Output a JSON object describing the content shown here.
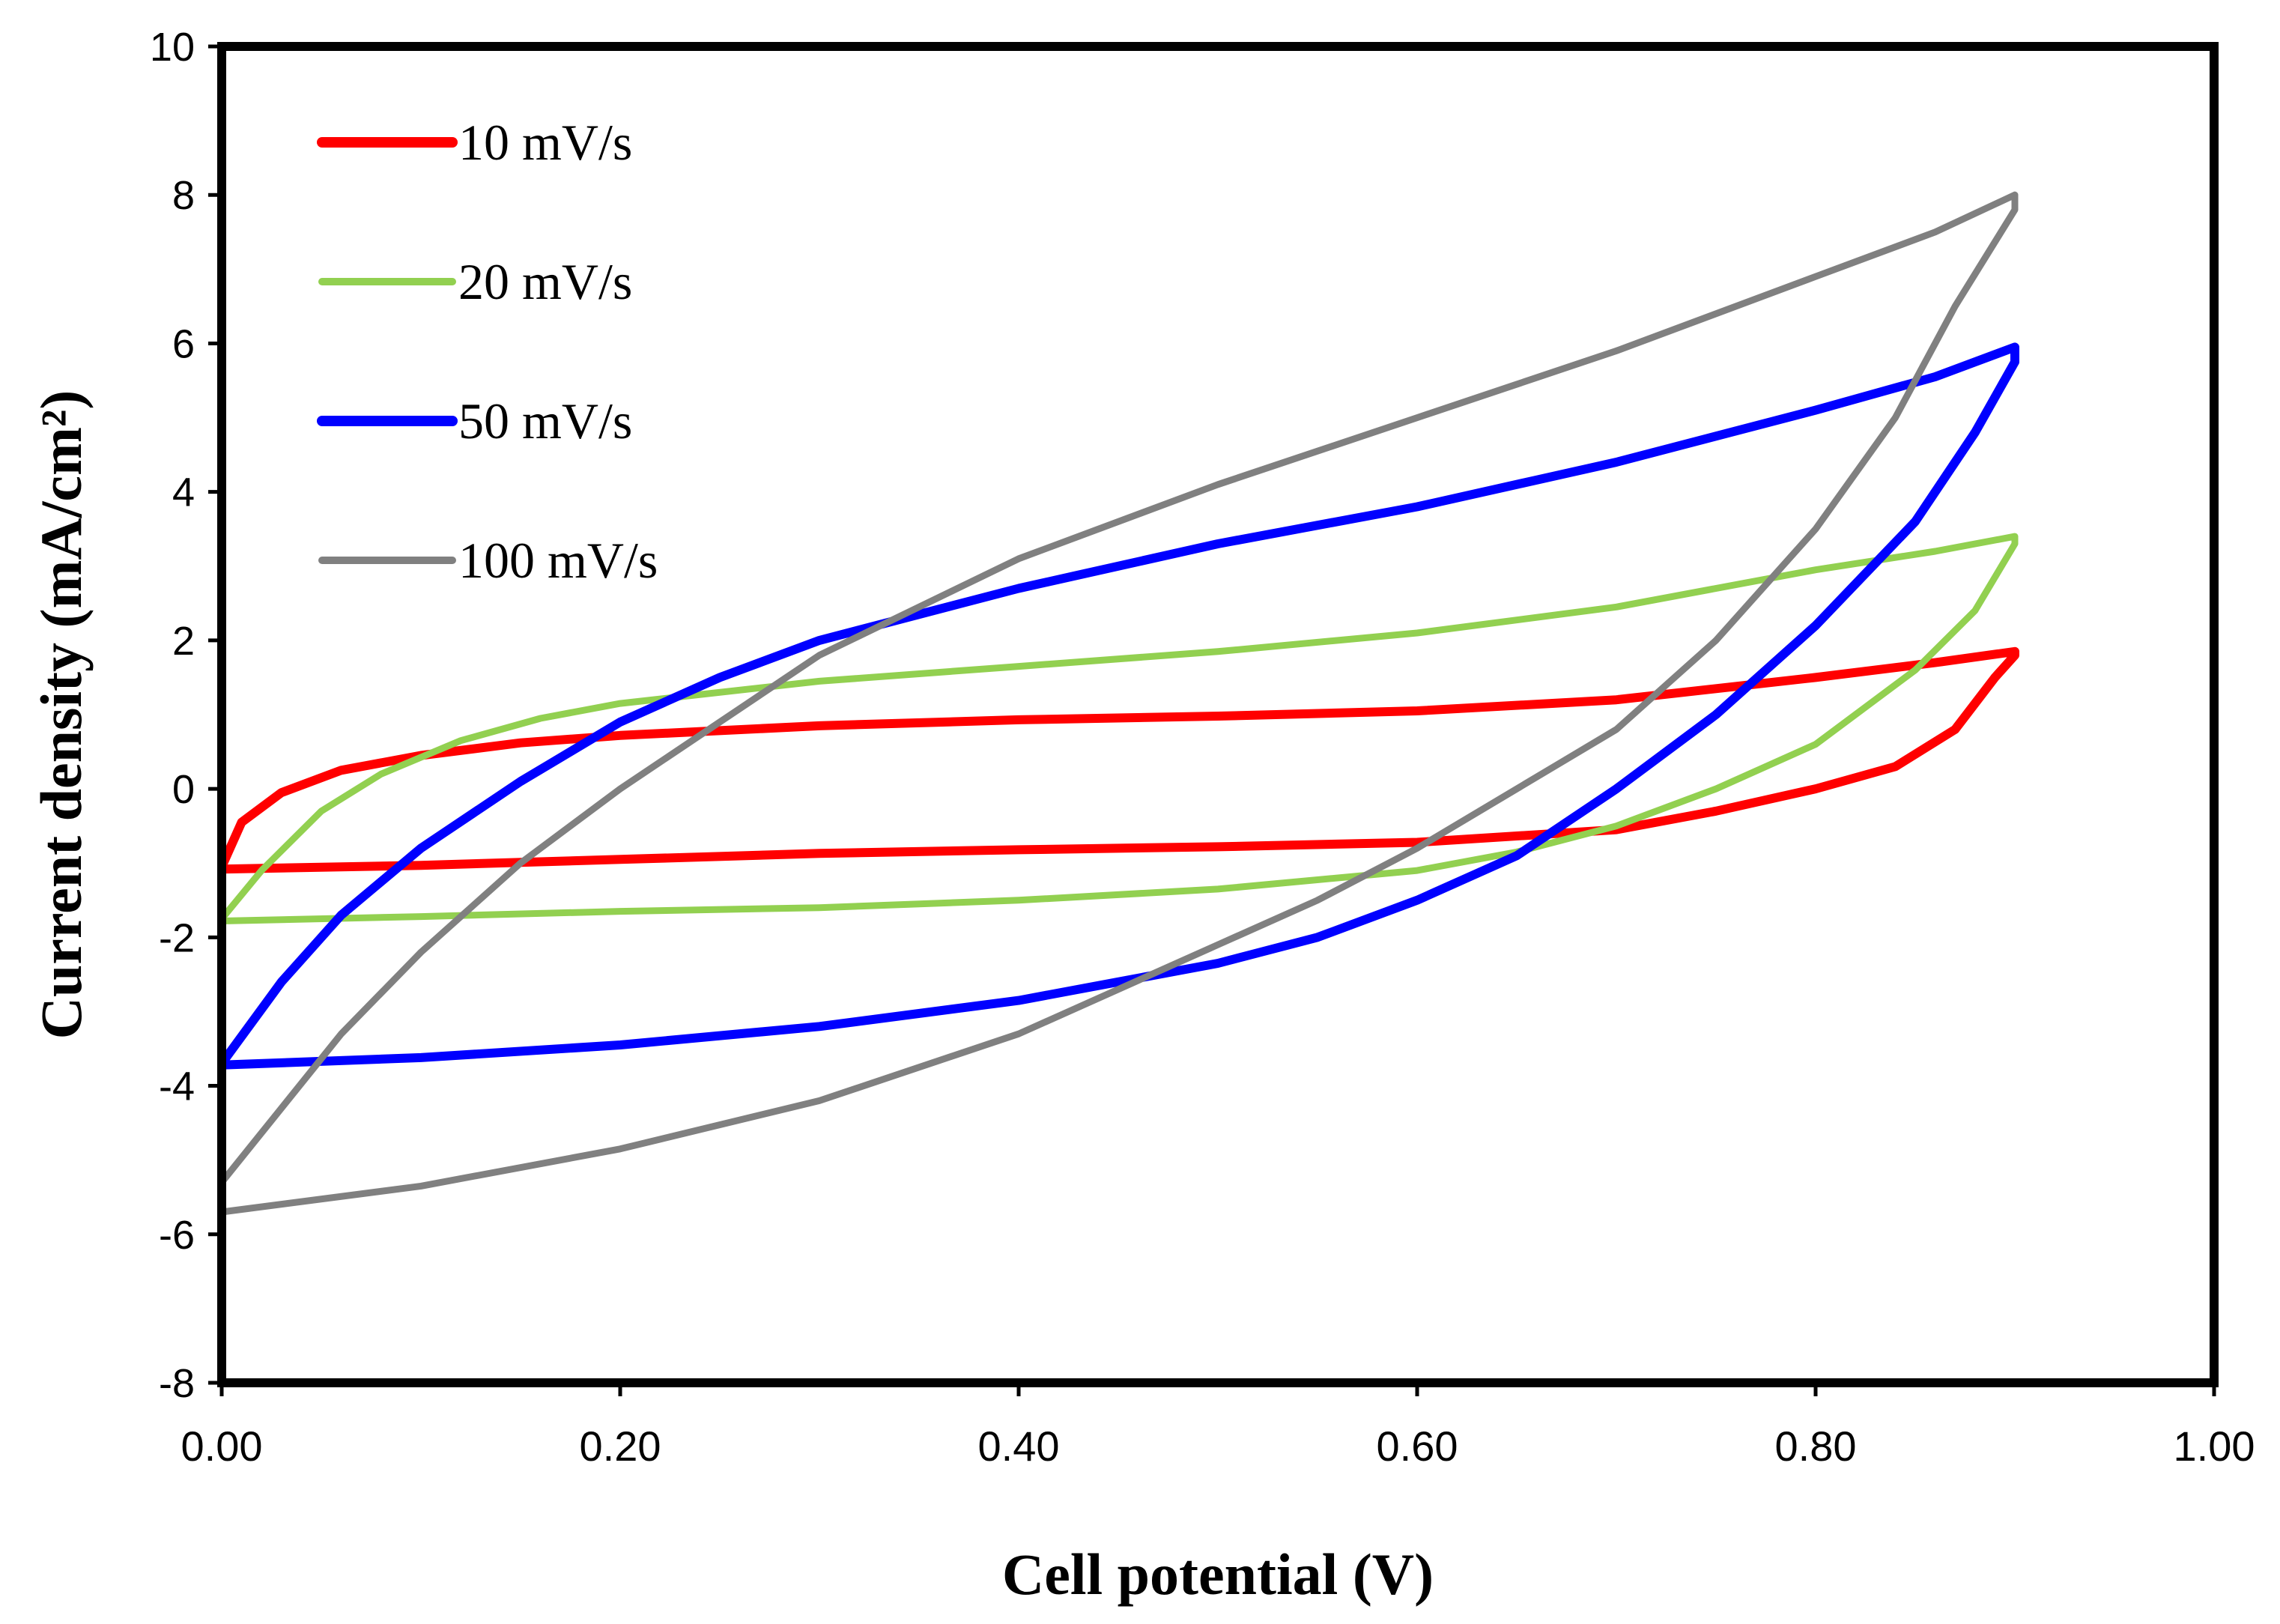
{
  "chart_data": {
    "type": "line",
    "title": "",
    "xlabel": "Cell potential (V)",
    "ylabel": "Current density (mA/cm²)",
    "xlim": [
      0,
      1
    ],
    "ylim": [
      -8,
      10
    ],
    "xticks": [
      0,
      0.2,
      0.4,
      0.6,
      0.8,
      1.0
    ],
    "xtick_labels": [
      "0.00",
      "0.20",
      "0.40",
      "0.60",
      "0.80",
      "1.00"
    ],
    "yticks": [
      -8,
      -6,
      -4,
      -2,
      0,
      2,
      4,
      6,
      8,
      10
    ],
    "ytick_labels": [
      "-8",
      "-6",
      "-4",
      "-2",
      "0",
      "2",
      "4",
      "6",
      "8",
      "10"
    ],
    "grid": false,
    "legend_position": "top-left",
    "series": [
      {
        "name": "10 mV/s",
        "color": "#ff0000",
        "points": [
          [
            0.0,
            -1.05
          ],
          [
            0.01,
            -0.45
          ],
          [
            0.03,
            -0.05
          ],
          [
            0.06,
            0.25
          ],
          [
            0.1,
            0.45
          ],
          [
            0.15,
            0.62
          ],
          [
            0.2,
            0.72
          ],
          [
            0.3,
            0.85
          ],
          [
            0.4,
            0.93
          ],
          [
            0.5,
            0.98
          ],
          [
            0.6,
            1.05
          ],
          [
            0.7,
            1.2
          ],
          [
            0.8,
            1.5
          ],
          [
            0.86,
            1.7
          ],
          [
            0.9,
            1.85
          ],
          [
            0.9,
            1.8
          ],
          [
            0.89,
            1.5
          ],
          [
            0.87,
            0.8
          ],
          [
            0.84,
            0.3
          ],
          [
            0.8,
            0.0
          ],
          [
            0.75,
            -0.3
          ],
          [
            0.7,
            -0.55
          ],
          [
            0.6,
            -0.72
          ],
          [
            0.5,
            -0.78
          ],
          [
            0.4,
            -0.82
          ],
          [
            0.3,
            -0.87
          ],
          [
            0.2,
            -0.95
          ],
          [
            0.1,
            -1.03
          ],
          [
            0.0,
            -1.08
          ]
        ]
      },
      {
        "name": "20 mV/s",
        "color": "#92d050",
        "points": [
          [
            0.0,
            -1.75
          ],
          [
            0.02,
            -1.1
          ],
          [
            0.05,
            -0.3
          ],
          [
            0.08,
            0.2
          ],
          [
            0.12,
            0.65
          ],
          [
            0.16,
            0.95
          ],
          [
            0.2,
            1.15
          ],
          [
            0.3,
            1.45
          ],
          [
            0.4,
            1.65
          ],
          [
            0.5,
            1.85
          ],
          [
            0.6,
            2.1
          ],
          [
            0.7,
            2.45
          ],
          [
            0.8,
            2.95
          ],
          [
            0.86,
            3.2
          ],
          [
            0.9,
            3.4
          ],
          [
            0.9,
            3.3
          ],
          [
            0.88,
            2.4
          ],
          [
            0.85,
            1.6
          ],
          [
            0.8,
            0.6
          ],
          [
            0.75,
            0.0
          ],
          [
            0.7,
            -0.5
          ],
          [
            0.65,
            -0.85
          ],
          [
            0.6,
            -1.1
          ],
          [
            0.5,
            -1.35
          ],
          [
            0.4,
            -1.5
          ],
          [
            0.3,
            -1.6
          ],
          [
            0.2,
            -1.65
          ],
          [
            0.1,
            -1.72
          ],
          [
            0.0,
            -1.78
          ]
        ]
      },
      {
        "name": "50 mV/s",
        "color": "#0000ff",
        "points": [
          [
            0.0,
            -3.7
          ],
          [
            0.03,
            -2.6
          ],
          [
            0.06,
            -1.7
          ],
          [
            0.1,
            -0.8
          ],
          [
            0.15,
            0.1
          ],
          [
            0.2,
            0.9
          ],
          [
            0.25,
            1.5
          ],
          [
            0.3,
            2.0
          ],
          [
            0.4,
            2.7
          ],
          [
            0.5,
            3.3
          ],
          [
            0.6,
            3.8
          ],
          [
            0.7,
            4.4
          ],
          [
            0.8,
            5.1
          ],
          [
            0.86,
            5.55
          ],
          [
            0.9,
            5.95
          ],
          [
            0.9,
            5.75
          ],
          [
            0.88,
            4.8
          ],
          [
            0.85,
            3.6
          ],
          [
            0.8,
            2.2
          ],
          [
            0.75,
            1.0
          ],
          [
            0.7,
            0.0
          ],
          [
            0.65,
            -0.9
          ],
          [
            0.6,
            -1.5
          ],
          [
            0.55,
            -2.0
          ],
          [
            0.5,
            -2.35
          ],
          [
            0.4,
            -2.85
          ],
          [
            0.3,
            -3.2
          ],
          [
            0.2,
            -3.45
          ],
          [
            0.1,
            -3.62
          ],
          [
            0.0,
            -3.72
          ]
        ]
      },
      {
        "name": "100 mV/s",
        "color": "#808080",
        "points": [
          [
            0.0,
            -5.3
          ],
          [
            0.03,
            -4.3
          ],
          [
            0.06,
            -3.3
          ],
          [
            0.1,
            -2.2
          ],
          [
            0.15,
            -1.0
          ],
          [
            0.2,
            0.0
          ],
          [
            0.25,
            0.9
          ],
          [
            0.3,
            1.8
          ],
          [
            0.4,
            3.1
          ],
          [
            0.5,
            4.1
          ],
          [
            0.6,
            5.0
          ],
          [
            0.7,
            5.9
          ],
          [
            0.8,
            6.9
          ],
          [
            0.86,
            7.5
          ],
          [
            0.9,
            8.0
          ],
          [
            0.9,
            7.8
          ],
          [
            0.87,
            6.5
          ],
          [
            0.84,
            5.0
          ],
          [
            0.8,
            3.5
          ],
          [
            0.75,
            2.0
          ],
          [
            0.7,
            0.8
          ],
          [
            0.65,
            0.0
          ],
          [
            0.6,
            -0.8
          ],
          [
            0.55,
            -1.5
          ],
          [
            0.5,
            -2.1
          ],
          [
            0.4,
            -3.3
          ],
          [
            0.3,
            -4.2
          ],
          [
            0.2,
            -4.85
          ],
          [
            0.1,
            -5.35
          ],
          [
            0.0,
            -5.7
          ]
        ]
      }
    ]
  }
}
